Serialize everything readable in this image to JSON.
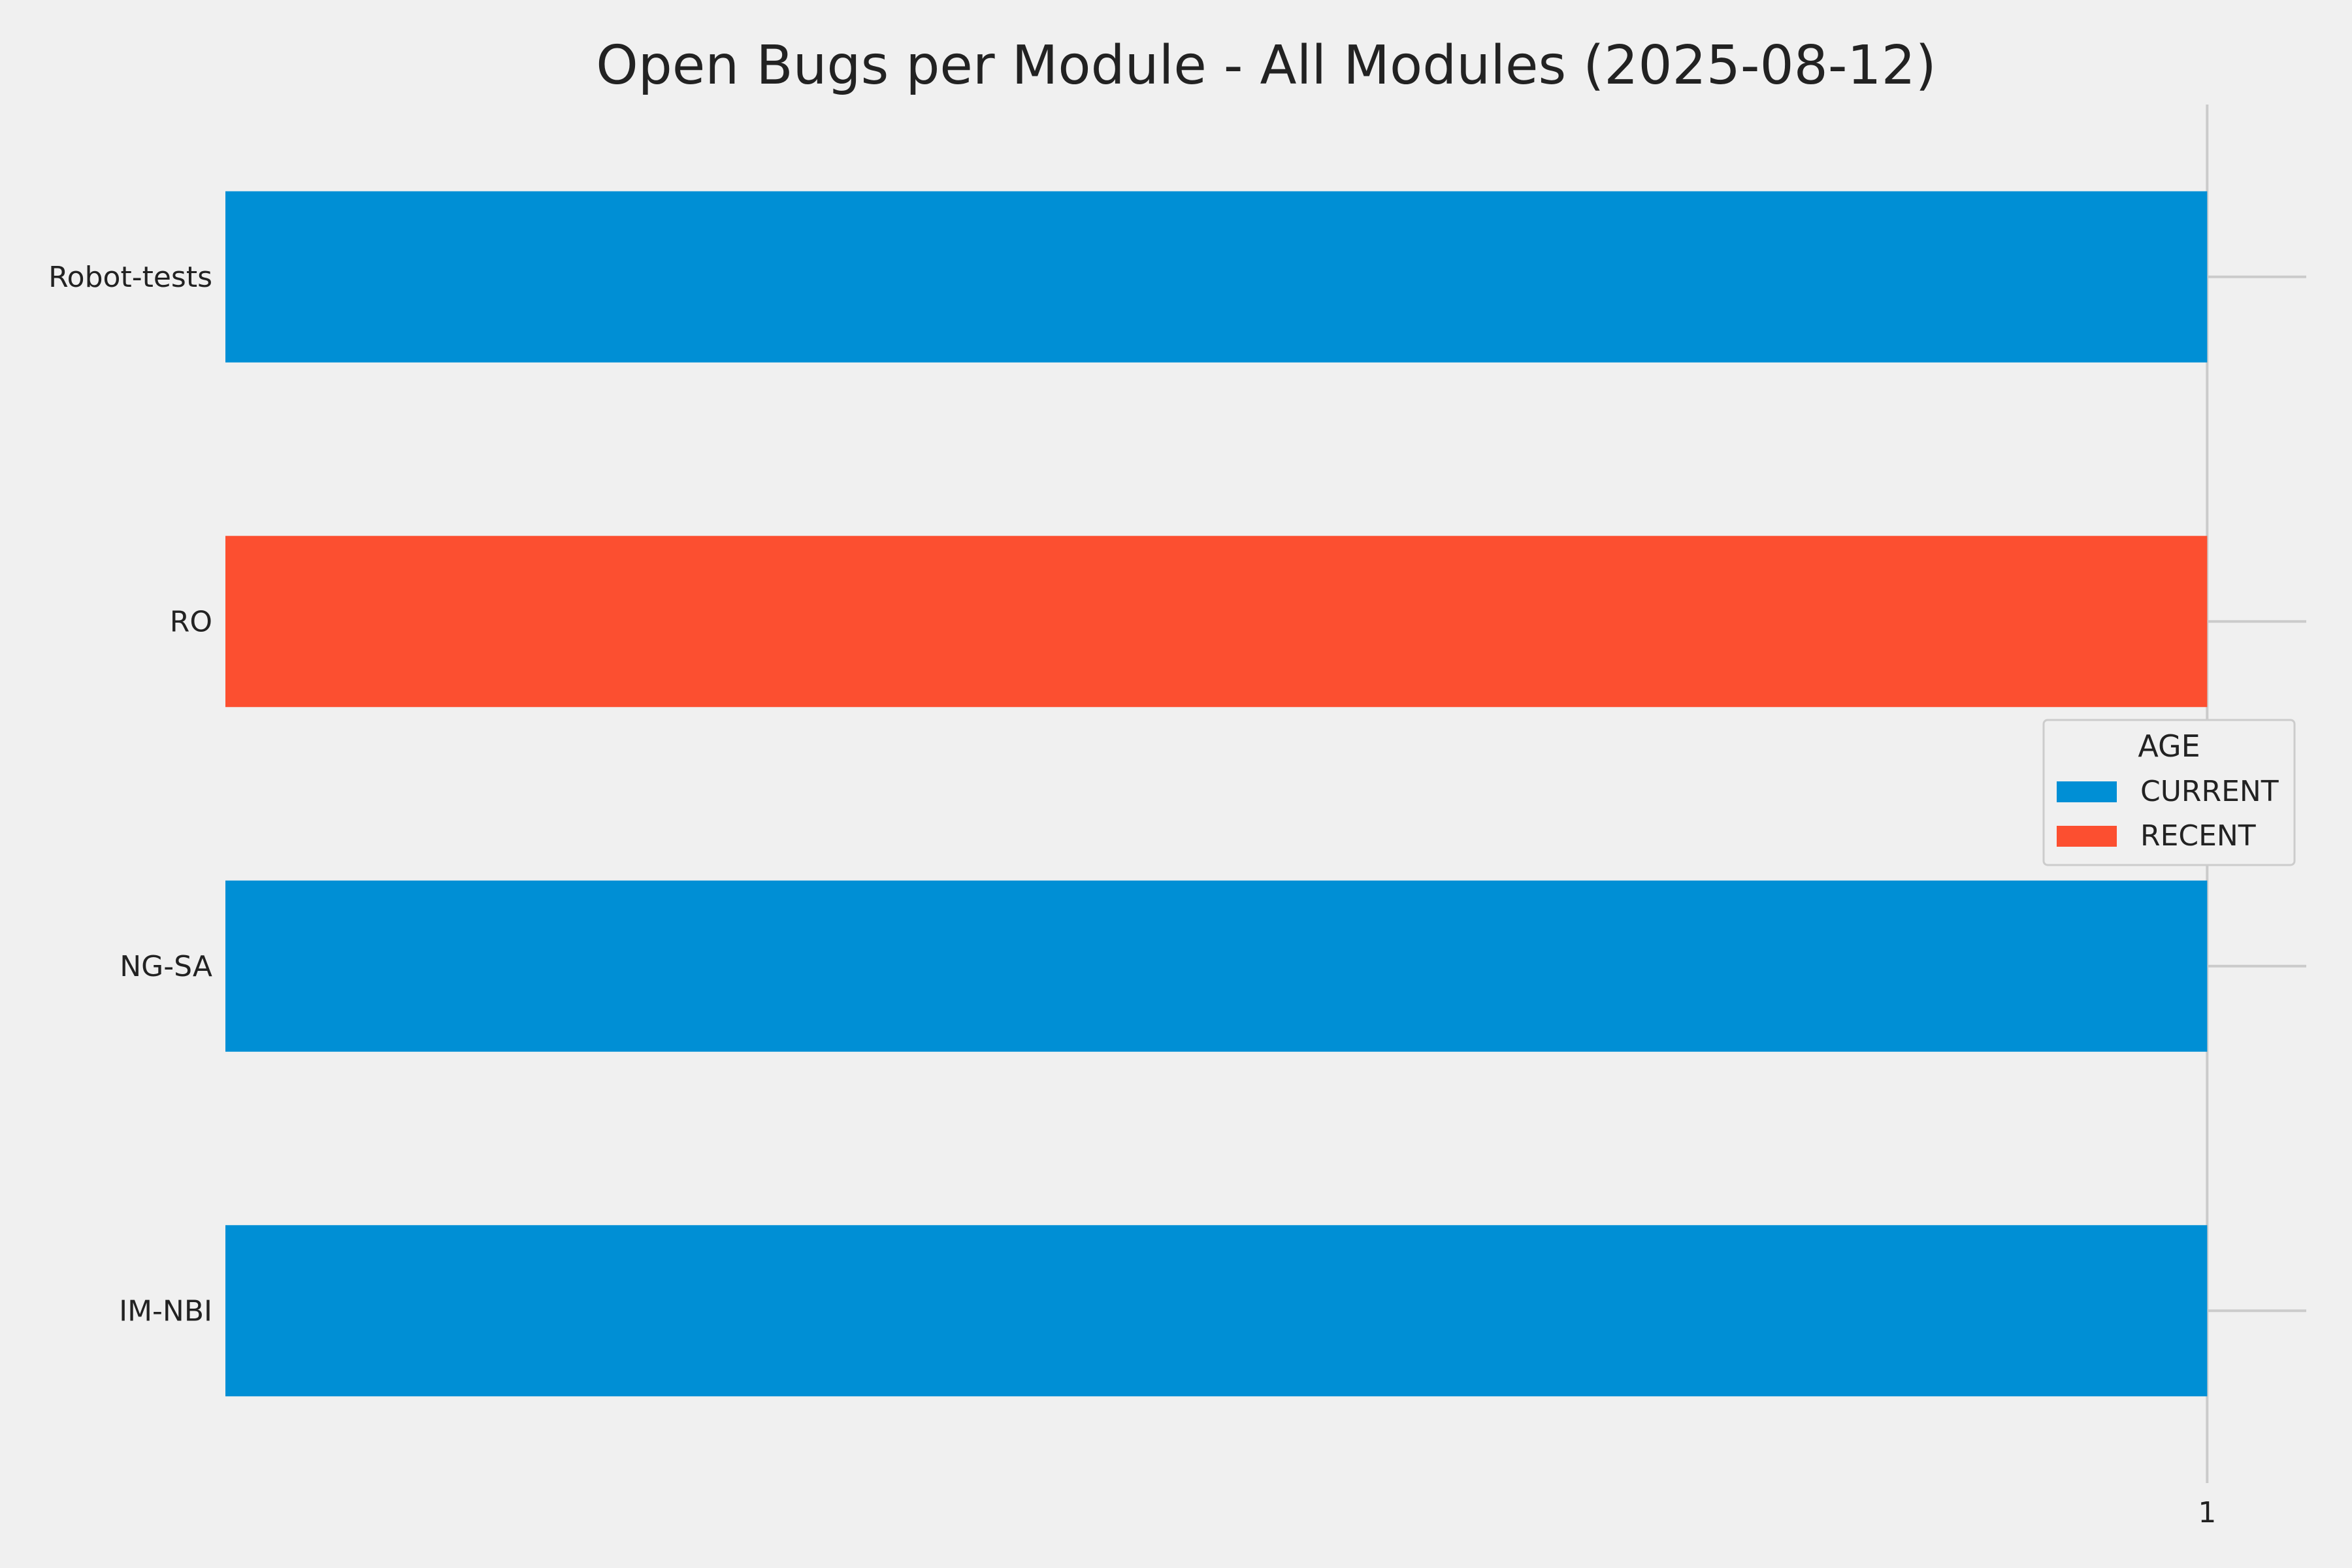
{
  "chart_data": {
    "type": "bar",
    "orientation": "horizontal",
    "title": "Open Bugs per Module - All Modules (2025-08-12)",
    "xlabel": "",
    "ylabel": "",
    "categories": [
      "IM-NBI",
      "NG-SA",
      "RO",
      "Robot-tests"
    ],
    "series": [
      {
        "name": "CURRENT",
        "color": "#008fd5",
        "values": [
          1,
          1,
          0,
          1
        ]
      },
      {
        "name": "RECENT",
        "color": "#fc4f30",
        "values": [
          0,
          0,
          1,
          0
        ]
      }
    ],
    "stacked": true,
    "xlim": [
      0,
      1.05
    ],
    "x_ticks": [
      "1"
    ],
    "grid": true,
    "legend": {
      "title": "AGE",
      "position": "center-right"
    }
  },
  "colors": {
    "background": "#f0f0f0",
    "grid": "#cbcbcb",
    "text": "#222222"
  }
}
